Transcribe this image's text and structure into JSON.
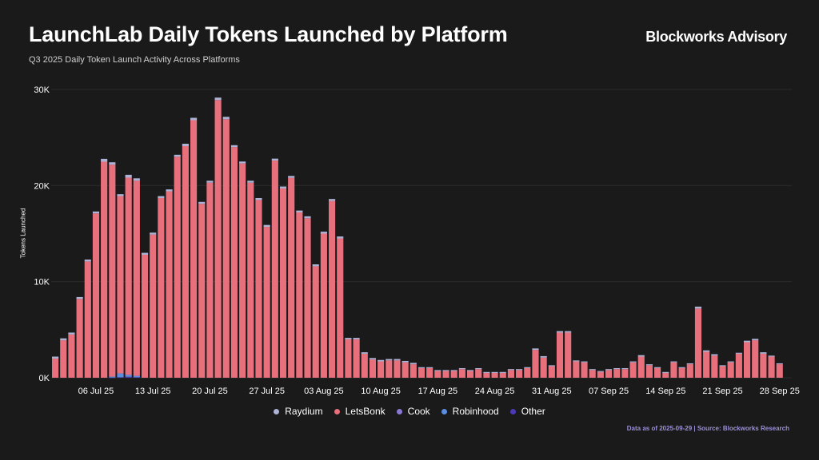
{
  "header": {
    "title": "LaunchLab Daily Tokens Launched by Platform",
    "subtitle": "Q3 2025 Daily Token Launch Activity Across Platforms",
    "brand": "Blockworks Advisory"
  },
  "footer": {
    "source": "Data as of 2025-09-29 | Source: Blockworks Research"
  },
  "colors": {
    "background": "#1a1a1a",
    "raydium": "#aeb3d6",
    "letsbonk": "#e8707c",
    "cook": "#8b78d4",
    "robinhood": "#5b8de0",
    "other": "#4b3ab8"
  },
  "chart_data": {
    "type": "bar",
    "stacked": true,
    "title": "LaunchLab Daily Tokens Launched by Platform",
    "subtitle": "Q3 2025 Daily Token Launch Activity Across Platforms",
    "xlabel": "",
    "ylabel": "Tokens Launched",
    "ylim": [
      0,
      30000
    ],
    "y_ticks": [
      0,
      10000,
      20000,
      30000
    ],
    "y_tick_labels": [
      "0K",
      "10K",
      "20K",
      "30K"
    ],
    "x_tick_labels": [
      "06 Jul 25",
      "13 Jul 25",
      "20 Jul 25",
      "27 Jul 25",
      "03 Aug 25",
      "10 Aug 25",
      "17 Aug 25",
      "24 Aug 25",
      "31 Aug 25",
      "07 Sep 25",
      "14 Sep 25",
      "21 Sep 25",
      "28 Sep 25"
    ],
    "x_tick_indices": [
      5,
      12,
      19,
      26,
      33,
      40,
      47,
      54,
      61,
      68,
      75,
      82,
      89
    ],
    "categories": [
      "2025-07-01",
      "2025-07-02",
      "2025-07-03",
      "2025-07-04",
      "2025-07-05",
      "2025-07-06",
      "2025-07-07",
      "2025-07-08",
      "2025-07-09",
      "2025-07-10",
      "2025-07-11",
      "2025-07-12",
      "2025-07-13",
      "2025-07-14",
      "2025-07-15",
      "2025-07-16",
      "2025-07-17",
      "2025-07-18",
      "2025-07-19",
      "2025-07-20",
      "2025-07-21",
      "2025-07-22",
      "2025-07-23",
      "2025-07-24",
      "2025-07-25",
      "2025-07-26",
      "2025-07-27",
      "2025-07-28",
      "2025-07-29",
      "2025-07-30",
      "2025-07-31",
      "2025-08-01",
      "2025-08-02",
      "2025-08-03",
      "2025-08-04",
      "2025-08-05",
      "2025-08-06",
      "2025-08-07",
      "2025-08-08",
      "2025-08-09",
      "2025-08-10",
      "2025-08-11",
      "2025-08-12",
      "2025-08-13",
      "2025-08-14",
      "2025-08-15",
      "2025-08-16",
      "2025-08-17",
      "2025-08-18",
      "2025-08-19",
      "2025-08-20",
      "2025-08-21",
      "2025-08-22",
      "2025-08-23",
      "2025-08-24",
      "2025-08-25",
      "2025-08-26",
      "2025-08-27",
      "2025-08-28",
      "2025-08-29",
      "2025-08-30",
      "2025-08-31",
      "2025-09-01",
      "2025-09-02",
      "2025-09-03",
      "2025-09-04",
      "2025-09-05",
      "2025-09-06",
      "2025-09-07",
      "2025-09-08",
      "2025-09-09",
      "2025-09-10",
      "2025-09-11",
      "2025-09-12",
      "2025-09-13",
      "2025-09-14",
      "2025-09-15",
      "2025-09-16",
      "2025-09-17",
      "2025-09-18",
      "2025-09-19",
      "2025-09-20",
      "2025-09-21",
      "2025-09-22",
      "2025-09-23",
      "2025-09-24",
      "2025-09-25",
      "2025-09-26",
      "2025-09-27",
      "2025-09-28",
      "2025-09-29"
    ],
    "series": [
      {
        "name": "Other",
        "color": "#4b3ab8",
        "values": [
          0,
          0,
          0,
          0,
          0,
          0,
          0,
          20,
          50,
          100,
          50,
          0,
          0,
          0,
          0,
          0,
          0,
          0,
          0,
          0,
          0,
          0,
          0,
          0,
          0,
          0,
          0,
          0,
          0,
          0,
          0,
          0,
          0,
          0,
          0,
          0,
          0,
          0,
          0,
          0,
          0,
          0,
          0,
          0,
          0,
          0,
          0,
          0,
          0,
          0,
          0,
          0,
          0,
          0,
          0,
          0,
          0,
          0,
          0,
          0,
          0,
          0,
          0,
          0,
          0,
          0,
          0,
          0,
          0,
          0,
          0,
          0,
          0,
          0,
          0,
          0,
          0,
          0,
          0,
          0,
          0,
          0,
          0,
          0,
          0,
          0,
          0,
          0,
          0,
          0,
          0
        ]
      },
      {
        "name": "Robinhood",
        "color": "#5b8de0",
        "values": [
          0,
          0,
          0,
          0,
          0,
          0,
          0,
          100,
          400,
          200,
          150,
          0,
          0,
          0,
          0,
          0,
          0,
          0,
          0,
          0,
          0,
          0,
          0,
          0,
          0,
          0,
          0,
          0,
          0,
          0,
          0,
          0,
          0,
          0,
          0,
          0,
          0,
          0,
          0,
          0,
          0,
          0,
          0,
          0,
          0,
          0,
          0,
          0,
          0,
          0,
          0,
          0,
          0,
          0,
          0,
          0,
          0,
          0,
          0,
          0,
          0,
          0,
          0,
          0,
          0,
          0,
          0,
          0,
          0,
          0,
          0,
          0,
          0,
          0,
          0,
          0,
          0,
          0,
          0,
          0,
          0,
          0,
          0,
          0,
          0,
          0,
          0,
          0,
          0,
          0,
          0
        ]
      },
      {
        "name": "Cook",
        "color": "#8b78d4",
        "values": [
          0,
          0,
          0,
          0,
          0,
          0,
          0,
          0,
          0,
          0,
          0,
          0,
          0,
          0,
          0,
          0,
          0,
          0,
          0,
          0,
          0,
          0,
          0,
          0,
          0,
          0,
          0,
          0,
          0,
          0,
          0,
          0,
          0,
          0,
          0,
          0,
          0,
          0,
          0,
          0,
          0,
          0,
          0,
          0,
          0,
          0,
          0,
          0,
          0,
          0,
          0,
          0,
          0,
          0,
          0,
          0,
          0,
          0,
          0,
          0,
          0,
          0,
          0,
          0,
          0,
          0,
          0,
          0,
          0,
          0,
          0,
          0,
          0,
          0,
          0,
          0,
          0,
          0,
          0,
          0,
          0,
          0,
          0,
          0,
          0,
          0,
          0,
          0,
          0,
          0,
          0
        ]
      },
      {
        "name": "LetsBonk",
        "color": "#e8707c",
        "values": [
          2000,
          3900,
          4500,
          8200,
          12100,
          17100,
          22480,
          22050,
          18450,
          20520,
          20300,
          12800,
          14900,
          18700,
          19400,
          23000,
          24100,
          26800,
          18100,
          20300,
          28900,
          26900,
          24000,
          22300,
          20300,
          18500,
          15700,
          22600,
          19700,
          20800,
          17200,
          16600,
          11600,
          15000,
          18400,
          14500,
          4000,
          4000,
          2500,
          1900,
          1700,
          1800,
          1800,
          1600,
          1400,
          1000,
          1000,
          700,
          700,
          700,
          900,
          700,
          900,
          500,
          500,
          500,
          800,
          800,
          1000,
          2900,
          2100,
          1200,
          4700,
          4700,
          1700,
          1600,
          800,
          600,
          800,
          900,
          900,
          1600,
          2200,
          1300,
          1000,
          500,
          1600,
          1000,
          1400,
          7200,
          2700,
          2300,
          1200,
          1600,
          2500,
          3700,
          3900,
          2500,
          2200,
          1400,
          0
        ]
      },
      {
        "name": "Raydium",
        "color": "#aeb3d6",
        "values": [
          200,
          200,
          200,
          200,
          200,
          200,
          300,
          250,
          200,
          300,
          250,
          200,
          200,
          200,
          200,
          200,
          250,
          250,
          200,
          200,
          250,
          250,
          200,
          200,
          200,
          200,
          200,
          200,
          200,
          200,
          200,
          200,
          200,
          200,
          200,
          200,
          150,
          150,
          150,
          150,
          150,
          150,
          150,
          150,
          150,
          100,
          100,
          100,
          100,
          100,
          100,
          100,
          100,
          100,
          100,
          100,
          100,
          100,
          100,
          150,
          150,
          100,
          150,
          150,
          100,
          100,
          100,
          100,
          100,
          100,
          100,
          100,
          150,
          100,
          100,
          100,
          100,
          100,
          100,
          200,
          150,
          150,
          100,
          100,
          100,
          150,
          150,
          150,
          100,
          100,
          0
        ]
      }
    ],
    "legend": [
      "Raydium",
      "LetsBonk",
      "Cook",
      "Robinhood",
      "Other"
    ],
    "legend_placement": "bottom-center",
    "grid": true
  }
}
